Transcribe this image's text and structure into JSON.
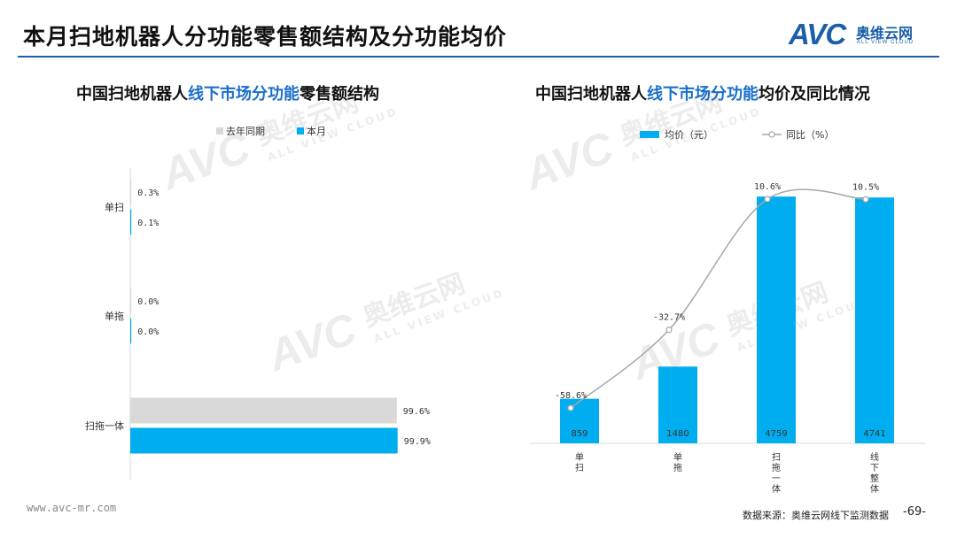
{
  "page": {
    "title": "本月扫地机器人分功能零售额结构及分功能均价",
    "logo_text": "AVC",
    "logo_cn": "奥维云网",
    "logo_en": "ALL VIEW CLOUD",
    "watermark_cn": "奥维云网",
    "watermark_en": "ALL VIEW CLOUD",
    "footer_url": "www.avc-mr.com",
    "footer_source": "数据来源：奥维云网线下监测数据",
    "page_number": "-69-",
    "colors": {
      "blue": "#00aeef",
      "gray": "#d9d9d9",
      "line": "#a6a6a6",
      "brand": "#1b5fa8",
      "highlight": "#1a6fc9"
    }
  },
  "chart_data": [
    {
      "type": "bar",
      "orientation": "horizontal",
      "title": {
        "prefix": "中国扫地机器人",
        "highlight": "线下市场分功能",
        "suffix": "零售额结构"
      },
      "categories": [
        "单扫",
        "单拖",
        "扫拖一体"
      ],
      "series": [
        {
          "name": "去年同期",
          "color": "#d9d9d9",
          "values": [
            0.3,
            0.0,
            99.6
          ],
          "labels": [
            "0.3%",
            "0.0%",
            "99.6%"
          ]
        },
        {
          "name": "本月",
          "color": "#00aeef",
          "values": [
            0.1,
            0.0,
            99.9
          ],
          "labels": [
            "0.1%",
            "0.0%",
            "99.9%"
          ]
        }
      ],
      "xlim": [
        0,
        100
      ],
      "legend": "top"
    },
    {
      "type": "bar",
      "title": {
        "prefix": "中国扫地机器人",
        "highlight": "线下市场分功能",
        "suffix": "均价及同比情况"
      },
      "categories": [
        "单扫",
        "单拖",
        "扫拖一体",
        "线下整体"
      ],
      "bar_series": {
        "name": "均价（元）",
        "color": "#00aeef",
        "values": [
          859,
          1480,
          4759,
          4741
        ]
      },
      "line_series": {
        "name": "同比（%）",
        "color": "#a6a6a6",
        "values": [
          -58.6,
          -32.7,
          10.6,
          10.5
        ],
        "labels": [
          "-58.6%",
          "-32.7%",
          "10.6%",
          "10.5%"
        ]
      },
      "ylim": [
        0,
        5000
      ],
      "legend": "top"
    }
  ]
}
